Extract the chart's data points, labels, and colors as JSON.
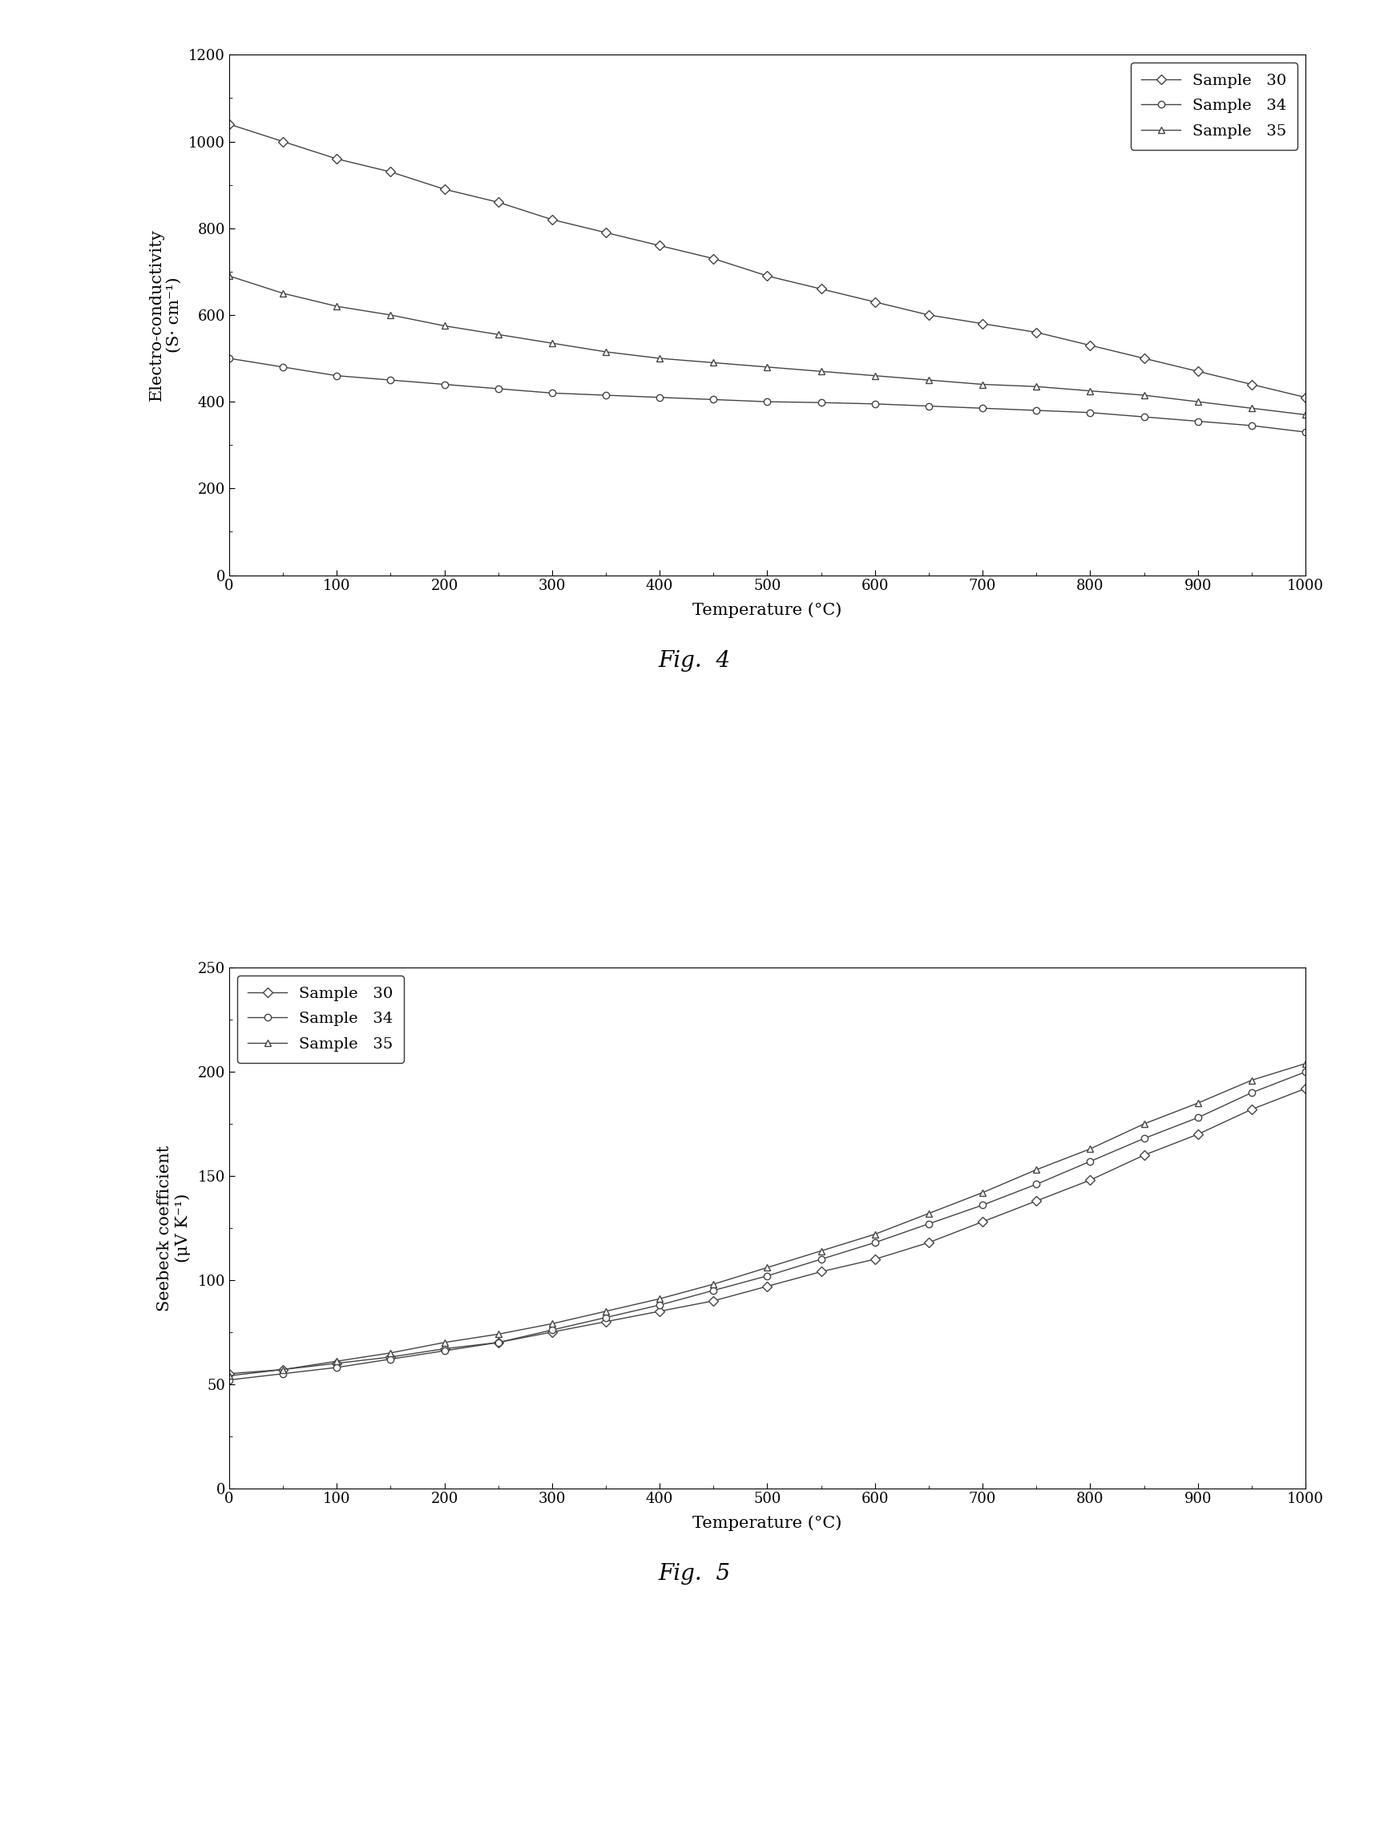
{
  "fig4": {
    "xlabel": "Temperature (°C)",
    "ylabel": "Electro-conductivity\n(S· cm⁻¹)",
    "xlim": [
      0,
      1000
    ],
    "ylim": [
      0,
      1200
    ],
    "yticks": [
      0,
      200,
      400,
      600,
      800,
      1000,
      1200
    ],
    "xticks": [
      0,
      100,
      200,
      300,
      400,
      500,
      600,
      700,
      800,
      900,
      1000
    ],
    "figcaption": "Fig.  4",
    "legend_loc": "upper right",
    "series": {
      "sample30": {
        "label": "Sample   30",
        "marker": "D",
        "x": [
          0,
          50,
          100,
          150,
          200,
          250,
          300,
          350,
          400,
          450,
          500,
          550,
          600,
          650,
          700,
          750,
          800,
          850,
          900,
          950,
          1000
        ],
        "y": [
          1040,
          1000,
          960,
          930,
          890,
          860,
          820,
          790,
          760,
          730,
          690,
          660,
          630,
          600,
          580,
          560,
          530,
          500,
          470,
          440,
          410
        ]
      },
      "sample34": {
        "label": "Sample   34",
        "marker": "o",
        "x": [
          0,
          50,
          100,
          150,
          200,
          250,
          300,
          350,
          400,
          450,
          500,
          550,
          600,
          650,
          700,
          750,
          800,
          850,
          900,
          950,
          1000
        ],
        "y": [
          500,
          480,
          460,
          450,
          440,
          430,
          420,
          415,
          410,
          405,
          400,
          398,
          395,
          390,
          385,
          380,
          375,
          365,
          355,
          345,
          330
        ]
      },
      "sample35": {
        "label": "Sample   35",
        "marker": "^",
        "x": [
          0,
          50,
          100,
          150,
          200,
          250,
          300,
          350,
          400,
          450,
          500,
          550,
          600,
          650,
          700,
          750,
          800,
          850,
          900,
          950,
          1000
        ],
        "y": [
          690,
          650,
          620,
          600,
          575,
          555,
          535,
          515,
          500,
          490,
          480,
          470,
          460,
          450,
          440,
          435,
          425,
          415,
          400,
          385,
          370
        ]
      }
    }
  },
  "fig5": {
    "xlabel": "Temperature (°C)",
    "ylabel": "Seebeck coefficient\n(μV K⁻¹)",
    "xlim": [
      0,
      1000
    ],
    "ylim": [
      0,
      250
    ],
    "yticks": [
      0,
      50,
      100,
      150,
      200,
      250
    ],
    "xticks": [
      0,
      100,
      200,
      300,
      400,
      500,
      600,
      700,
      800,
      900,
      1000
    ],
    "figcaption": "Fig.  5",
    "legend_loc": "upper left",
    "series": {
      "sample30": {
        "label": "Sample   30",
        "marker": "D",
        "x": [
          0,
          50,
          100,
          150,
          200,
          250,
          300,
          350,
          400,
          450,
          500,
          550,
          600,
          650,
          700,
          750,
          800,
          850,
          900,
          950,
          1000
        ],
        "y": [
          55,
          57,
          60,
          63,
          67,
          70,
          75,
          80,
          85,
          90,
          97,
          104,
          110,
          118,
          128,
          138,
          148,
          160,
          170,
          182,
          192
        ]
      },
      "sample34": {
        "label": "Sample   34",
        "marker": "o",
        "x": [
          0,
          50,
          100,
          150,
          200,
          250,
          300,
          350,
          400,
          450,
          500,
          550,
          600,
          650,
          700,
          750,
          800,
          850,
          900,
          950,
          1000
        ],
        "y": [
          52,
          55,
          58,
          62,
          66,
          70,
          76,
          82,
          88,
          95,
          102,
          110,
          118,
          127,
          136,
          146,
          157,
          168,
          178,
          190,
          200
        ]
      },
      "sample35": {
        "label": "Sample   35",
        "marker": "^",
        "x": [
          0,
          50,
          100,
          150,
          200,
          250,
          300,
          350,
          400,
          450,
          500,
          550,
          600,
          650,
          700,
          750,
          800,
          850,
          900,
          950,
          1000
        ],
        "y": [
          54,
          57,
          61,
          65,
          70,
          74,
          79,
          85,
          91,
          98,
          106,
          114,
          122,
          132,
          142,
          153,
          163,
          175,
          185,
          196,
          204
        ]
      }
    }
  },
  "line_color": "#444444",
  "marker_size": 6,
  "linewidth": 1.0,
  "background_color": "#ffffff",
  "legend_fontsize": 14,
  "axis_label_fontsize": 15,
  "tick_fontsize": 13,
  "caption_fontsize": 20
}
